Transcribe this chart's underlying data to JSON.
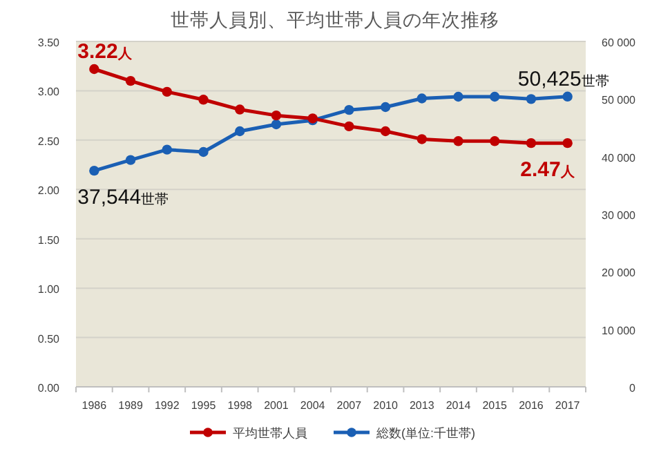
{
  "chart_data": {
    "type": "line",
    "title": "世帯人員別、平均世帯人員の年次推移",
    "categories": [
      "1986",
      "1989",
      "1992",
      "1995",
      "1998",
      "2001",
      "2004",
      "2007",
      "2010",
      "2013",
      "2014",
      "2015",
      "2016",
      "2017"
    ],
    "series": [
      {
        "name": "平均世帯人員",
        "color": "#c00000",
        "values": [
          3.22,
          3.1,
          2.99,
          2.91,
          2.81,
          2.75,
          2.72,
          2.64,
          2.59,
          2.51,
          2.49,
          2.49,
          2.47,
          2.47
        ]
      },
      {
        "name": "総数(単位:千世帯)",
        "color": "#1a5fb4",
        "axis": "y2",
        "values": [
          37544,
          39400,
          41200,
          40800,
          44400,
          45600,
          46300,
          48100,
          48600,
          50100,
          50400,
          50400,
          50000,
          50425
        ]
      }
    ],
    "ylim": [
      0,
      3.5
    ],
    "yticks": [
      {
        "value": 0,
        "label": "0.00"
      },
      {
        "value": 0.5,
        "label": "0.50"
      },
      {
        "value": 1,
        "label": "1.00"
      },
      {
        "value": 1.5,
        "label": "1.50"
      },
      {
        "value": 2,
        "label": "2.00"
      },
      {
        "value": 2.5,
        "label": "2.50"
      },
      {
        "value": 3,
        "label": "3.00"
      },
      {
        "value": 3.5,
        "label": "3.50"
      }
    ],
    "y2lim": [
      0,
      60000
    ],
    "y2ticks": [
      0,
      {
        "value": 10000,
        "label": "10 000"
      },
      {
        "value": 20000,
        "label": "20 000"
      },
      {
        "value": 30000,
        "label": "30 000"
      },
      {
        "value": 40000,
        "label": "40 000"
      },
      {
        "value": 50000,
        "label": "50 000"
      },
      {
        "value": 60000,
        "label": "60 000"
      }
    ],
    "annotations": [
      {
        "text": "3.22人",
        "x": "1986",
        "y": 3.22
      },
      {
        "text": "37,544世帯",
        "x": "1986",
        "y": 2.19
      },
      {
        "text": "50,425世帯",
        "x": "2017",
        "y": 2.94
      },
      {
        "text": "2.47人",
        "x": "2017",
        "y": 2.47
      }
    ],
    "grid": "y",
    "legend": "bottom",
    "marker": "circle",
    "line_style": "solid"
  }
}
